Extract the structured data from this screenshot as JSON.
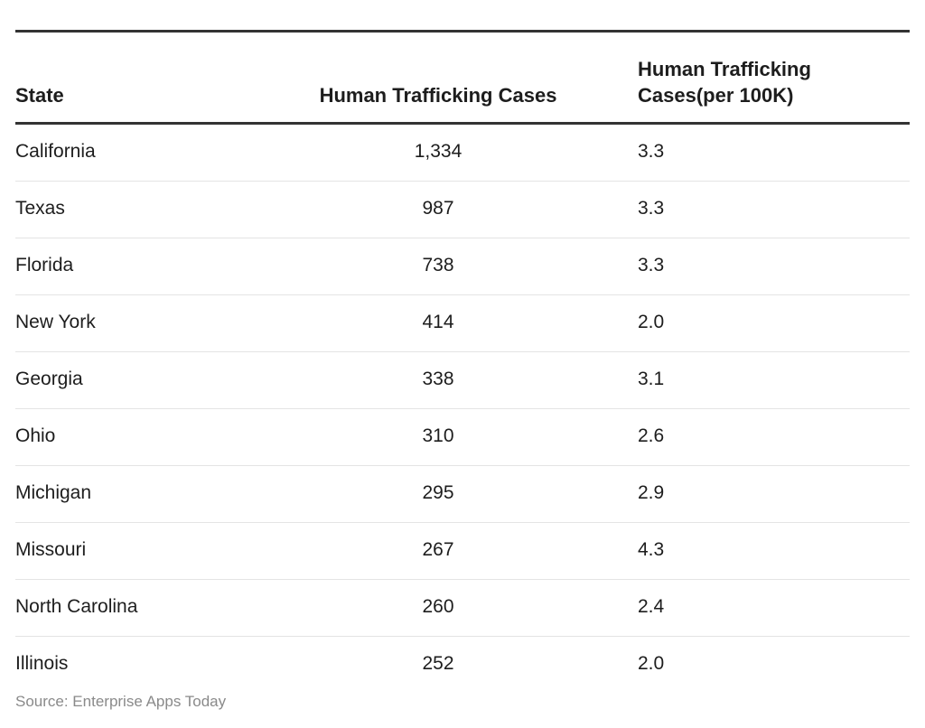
{
  "chart_data": {
    "type": "table",
    "columns": [
      "State",
      "Human Trafficking Cases",
      "Human Trafficking Cases(per 100K)"
    ],
    "rows": [
      [
        "California",
        "1,334",
        "3.3"
      ],
      [
        "Texas",
        "987",
        "3.3"
      ],
      [
        "Florida",
        "738",
        "3.3"
      ],
      [
        "New York",
        "414",
        "2.0"
      ],
      [
        "Georgia",
        "338",
        "3.1"
      ],
      [
        "Ohio",
        "310",
        "2.6"
      ],
      [
        "Michigan",
        "295",
        "2.9"
      ],
      [
        "Missouri",
        "267",
        "4.3"
      ],
      [
        "North Carolina",
        "260",
        "2.4"
      ],
      [
        "Illinois",
        "252",
        "2.0"
      ]
    ],
    "source": "Source: Enterprise Apps Today"
  }
}
